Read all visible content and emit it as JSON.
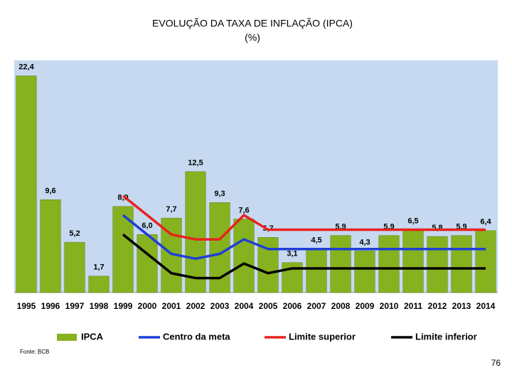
{
  "chart_data": {
    "type": "bar",
    "title": "EVOLUÇÃO DA TAXA DE INFLAÇÃO (IPCA)",
    "subtitle": "(%)",
    "categories": [
      "1995",
      "1996",
      "1997",
      "1998",
      "1999",
      "2000",
      "2001",
      "2002",
      "2003",
      "2004",
      "2005",
      "2006",
      "2007",
      "2008",
      "2009",
      "2010",
      "2011",
      "2012",
      "2013",
      "2014"
    ],
    "ylim": [
      0,
      24
    ],
    "series": [
      {
        "name": "IPCA",
        "type": "bar",
        "color": "#86b21f",
        "values": [
          22.4,
          9.6,
          5.2,
          1.7,
          8.9,
          6.0,
          7.7,
          12.5,
          9.3,
          7.6,
          5.7,
          3.1,
          4.5,
          5.9,
          4.3,
          5.9,
          6.5,
          5.8,
          5.9,
          6.4
        ],
        "value_labels": [
          "22,4",
          "9,6",
          "5,2",
          "1,7",
          "8,9",
          "6,0",
          "7,7",
          "12,5",
          "9,3",
          "7,6",
          "5,7",
          "3,1",
          "4,5",
          "5,9",
          "4,3",
          "5,9",
          "6,5",
          "5,8",
          "5,9",
          "6,4"
        ]
      },
      {
        "name": "Centro da meta",
        "type": "line",
        "color": "#1f3fd6",
        "values": [
          null,
          null,
          null,
          null,
          8,
          6,
          4,
          3.5,
          4,
          5.5,
          4.5,
          4.5,
          4.5,
          4.5,
          4.5,
          4.5,
          4.5,
          4.5,
          4.5,
          4.5
        ]
      },
      {
        "name": "Limite superior",
        "type": "line",
        "color": "#e8231c",
        "values": [
          null,
          null,
          null,
          null,
          10,
          8,
          6,
          5.5,
          5.5,
          8,
          6.5,
          6.5,
          6.5,
          6.5,
          6.5,
          6.5,
          6.5,
          6.5,
          6.5,
          6.5
        ]
      },
      {
        "name": "Limite inferior",
        "type": "line",
        "color": "#000000",
        "values": [
          null,
          null,
          null,
          null,
          6,
          4,
          2,
          1.5,
          1.5,
          3,
          2,
          2.5,
          2.5,
          2.5,
          2.5,
          2.5,
          2.5,
          2.5,
          2.5,
          2.5
        ]
      }
    ]
  },
  "source": "Fonte: BCB",
  "page_number": "76"
}
